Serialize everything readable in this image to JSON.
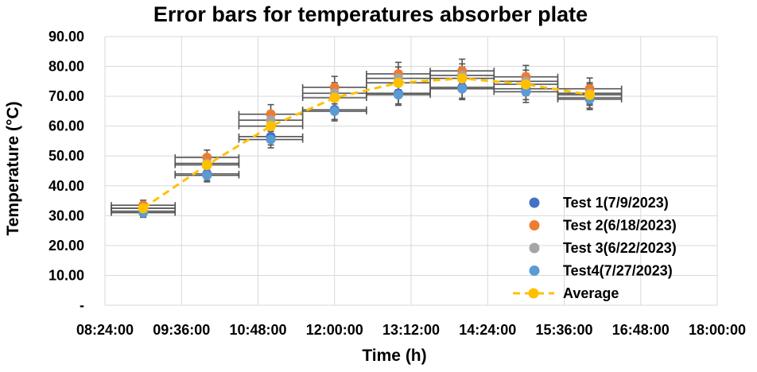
{
  "chart_data": {
    "type": "scatter",
    "title": "Error bars for temperatures absorber plate",
    "xlabel": "Time (h)",
    "ylabel": "Temperature (°C)",
    "x_ticks": [
      "08:24:00",
      "09:36:00",
      "10:48:00",
      "12:00:00",
      "13:12:00",
      "14:24:00",
      "15:36:00",
      "16:48:00",
      "18:00:00"
    ],
    "y_ticks": [
      "-",
      "10.00",
      "20.00",
      "30.00",
      "40.00",
      "50.00",
      "60.00",
      "70.00",
      "80.00",
      "90.00"
    ],
    "x_range_hours": [
      8.4,
      18.0
    ],
    "ylim": [
      0,
      90
    ],
    "grid": true,
    "legend_position": "bottom-right",
    "x_error_hours": 0.5,
    "y_error_percent": 5,
    "x_hours": [
      9.0,
      10.0,
      11.0,
      12.0,
      13.0,
      14.0,
      15.0,
      16.0
    ],
    "series": [
      {
        "name": "Test 1(7/9/2023)",
        "color": "#4472c4",
        "values": [
          31.5,
          44.0,
          56.5,
          65.5,
          71.0,
          73.0,
          72.5,
          69.5
        ]
      },
      {
        "name": "Test 2(6/18/2023)",
        "color": "#ed7d31",
        "values": [
          33.5,
          49.5,
          64.0,
          73.0,
          77.5,
          78.5,
          76.5,
          72.5
        ]
      },
      {
        "name": "Test 3(6/22/2023)",
        "color": "#a5a5a5",
        "values": [
          32.5,
          47.5,
          62.0,
          71.0,
          76.0,
          77.0,
          75.0,
          71.0
        ]
      },
      {
        "name": "Test4(7/27/2023)",
        "color": "#5b9bd5",
        "values": [
          31.0,
          43.5,
          55.5,
          65.0,
          70.5,
          72.5,
          71.5,
          69.0
        ]
      },
      {
        "name": "Average",
        "color": "#ffc000",
        "style": "dashed-line-with-markers",
        "values": [
          32.5,
          47.0,
          60.0,
          69.5,
          74.5,
          76.0,
          74.0,
          70.5
        ]
      }
    ]
  }
}
